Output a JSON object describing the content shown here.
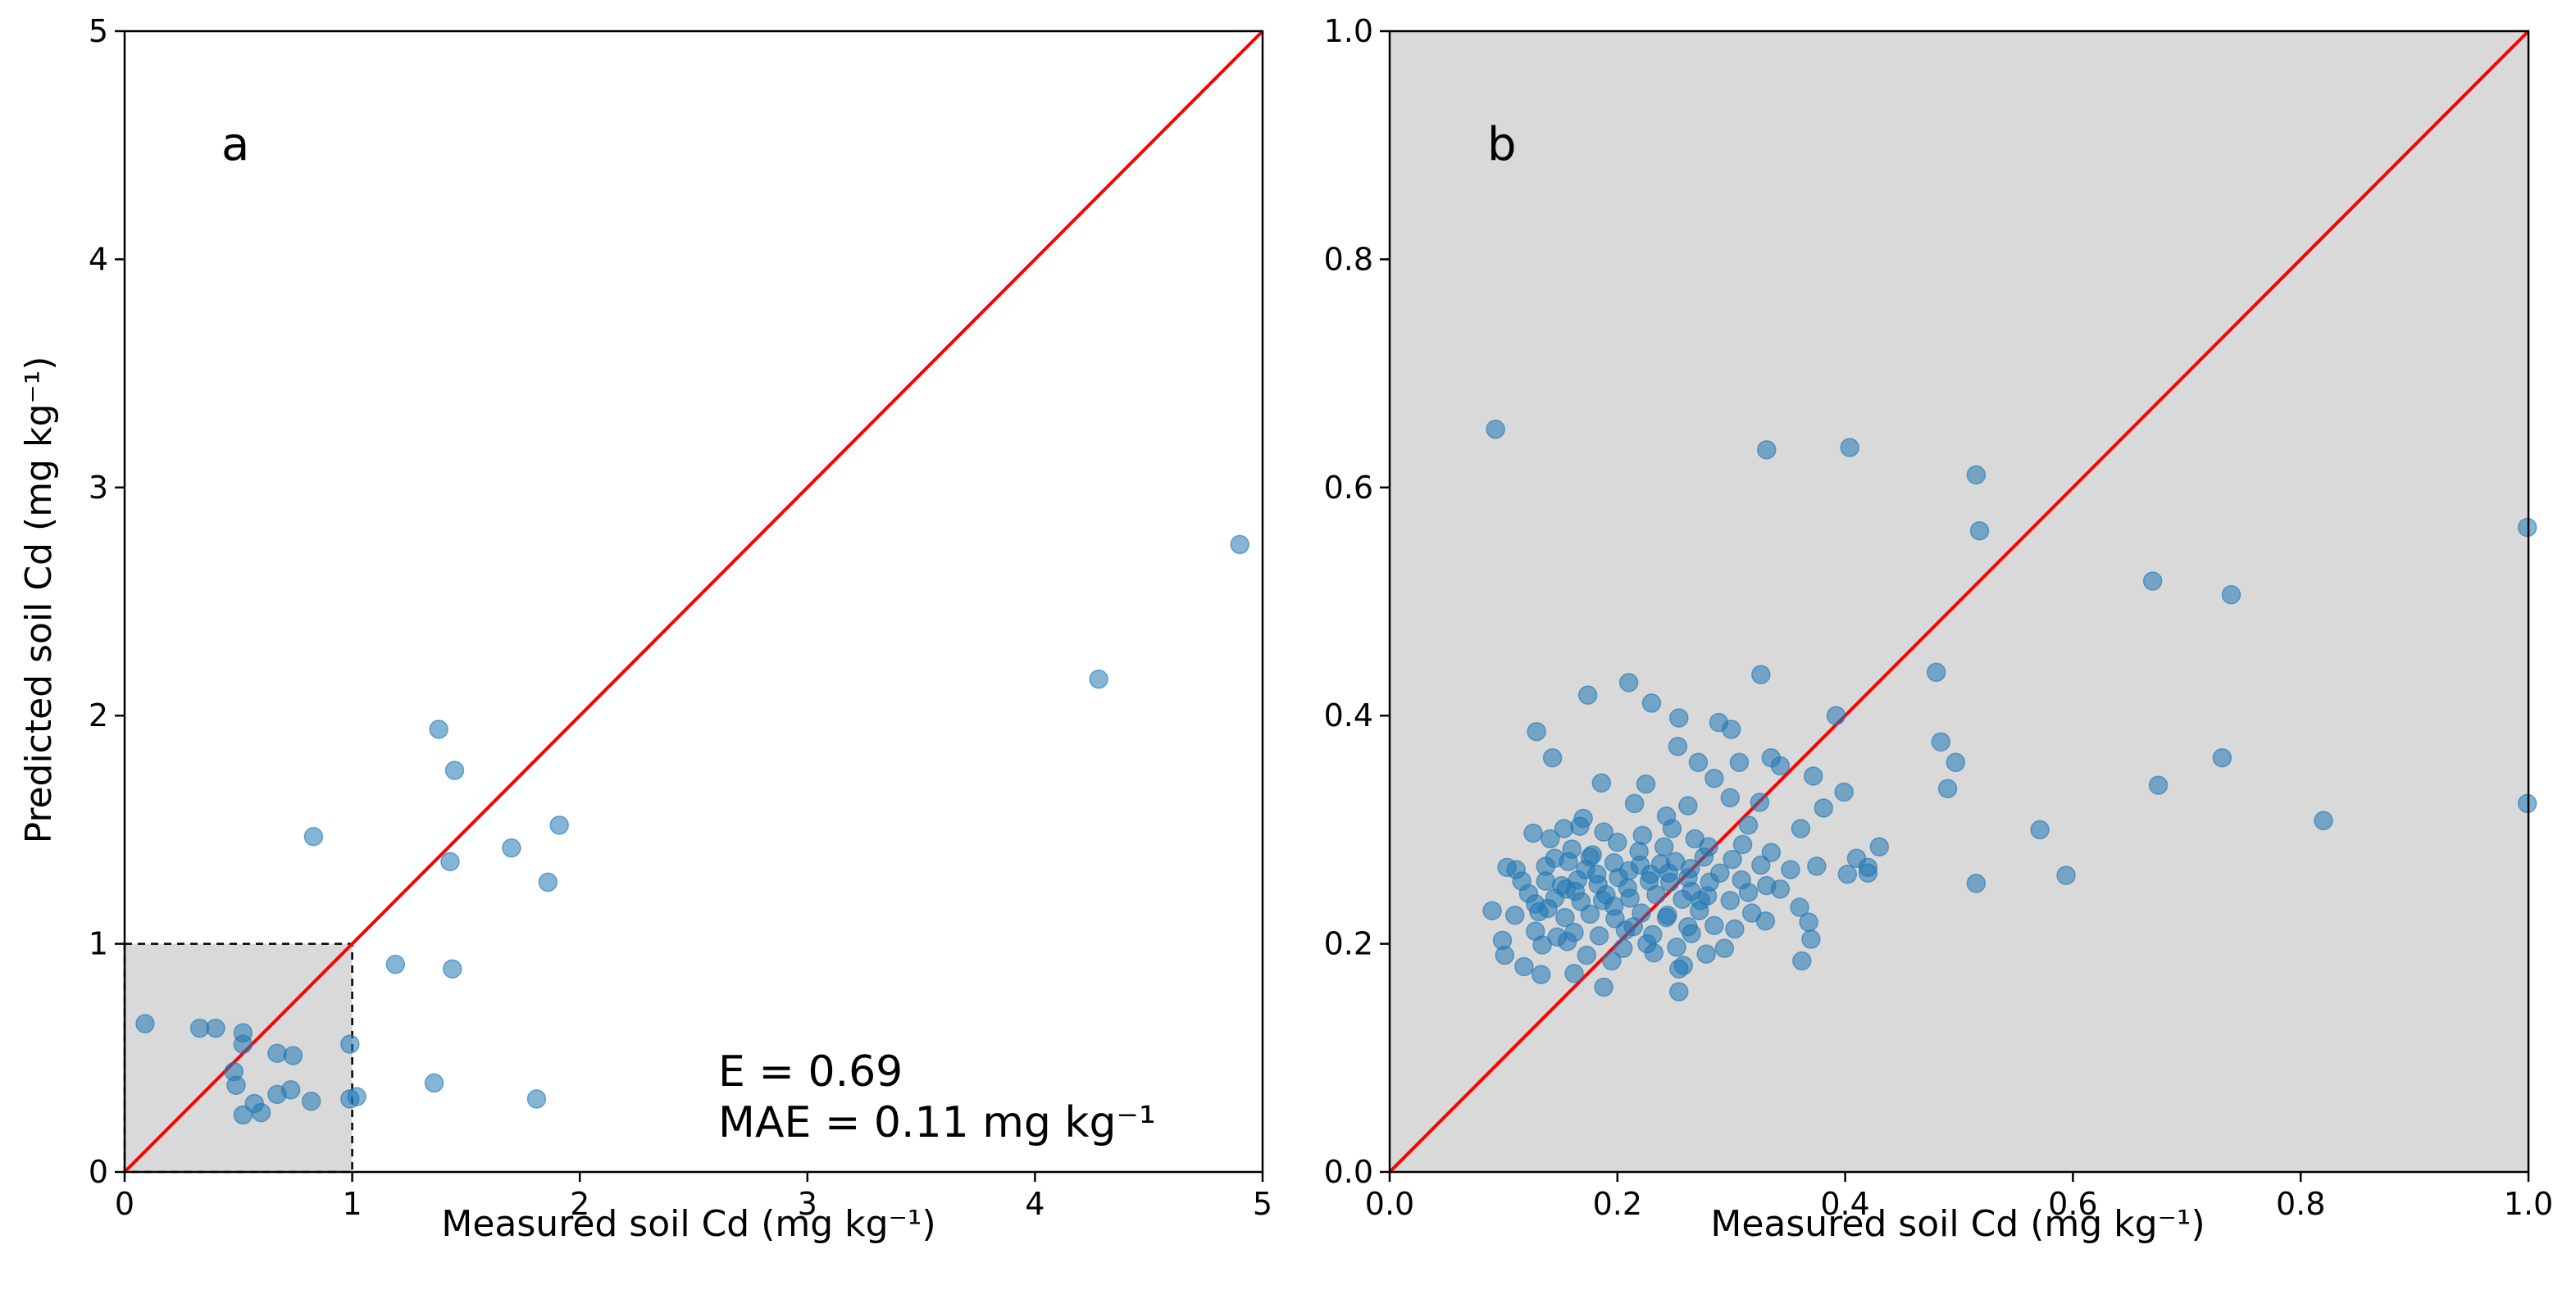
{
  "colors": {
    "point": "#1f77b4",
    "identity_line": "#ff0000",
    "inset_fill": "#d9d9d9",
    "frame": "#000000"
  },
  "chart_data": [
    {
      "type": "scatter",
      "panel_label": "a",
      "xlabel": "Measured soil Cd (mg kg⁻¹)",
      "ylabel": "Predicted soil Cd (mg kg⁻¹)",
      "xlim": [
        0,
        5
      ],
      "ylim": [
        0,
        5
      ],
      "xticks": [
        0,
        1,
        2,
        3,
        4,
        5
      ],
      "yticks": [
        0,
        1,
        2,
        3,
        4,
        5
      ],
      "tick_labels": [
        "0",
        "1",
        "2",
        "3",
        "4",
        "5"
      ],
      "reference_line": "1:1",
      "zoom_region": {
        "x": [
          0,
          1
        ],
        "y": [
          0,
          1
        ]
      },
      "annotations": [
        "E = 0.69",
        "MAE = 0.11 mg kg⁻¹"
      ],
      "points": [
        [
          4.9,
          2.75
        ],
        [
          4.28,
          2.16
        ],
        [
          1.38,
          1.94
        ],
        [
          1.45,
          1.76
        ],
        [
          1.91,
          1.52
        ],
        [
          0.83,
          1.47
        ],
        [
          1.7,
          1.42
        ],
        [
          1.43,
          1.36
        ],
        [
          1.86,
          1.27
        ],
        [
          1.19,
          0.91
        ],
        [
          1.44,
          0.89
        ],
        [
          1.36,
          0.39
        ],
        [
          1.81,
          0.32
        ],
        [
          1.02,
          0.33
        ],
        [
          0.99,
          0.32
        ],
        [
          0.99,
          0.56
        ],
        [
          0.82,
          0.31
        ],
        [
          0.67,
          0.52
        ],
        [
          0.74,
          0.51
        ],
        [
          0.73,
          0.36
        ],
        [
          0.67,
          0.34
        ],
        [
          0.6,
          0.26
        ],
        [
          0.57,
          0.3
        ],
        [
          0.52,
          0.61
        ],
        [
          0.52,
          0.56
        ],
        [
          0.52,
          0.25
        ],
        [
          0.48,
          0.44
        ],
        [
          0.49,
          0.38
        ],
        [
          0.4,
          0.63
        ],
        [
          0.33,
          0.63
        ],
        [
          0.09,
          0.65
        ]
      ]
    },
    {
      "type": "scatter",
      "panel_label": "b",
      "xlabel": "Measured soil Cd (mg kg⁻¹)",
      "xlim": [
        0,
        1
      ],
      "ylim": [
        0,
        1
      ],
      "xticks": [
        0,
        0.2,
        0.4,
        0.6,
        0.8,
        1.0
      ],
      "yticks": [
        0,
        0.2,
        0.4,
        0.6,
        0.8,
        1.0
      ],
      "tick_labels": [
        "0.0",
        "0.2",
        "0.4",
        "0.6",
        "0.8",
        "1.0"
      ],
      "reference_line": "1:1",
      "points": [
        [
          0.093,
          0.651
        ],
        [
          0.331,
          0.633
        ],
        [
          0.404,
          0.635
        ],
        [
          0.515,
          0.611
        ],
        [
          0.518,
          0.562
        ],
        [
          0.999,
          0.565
        ],
        [
          0.67,
          0.518
        ],
        [
          0.739,
          0.506
        ],
        [
          0.326,
          0.436
        ],
        [
          0.48,
          0.438
        ],
        [
          0.21,
          0.429
        ],
        [
          0.174,
          0.418
        ],
        [
          0.23,
          0.411
        ],
        [
          0.392,
          0.4
        ],
        [
          0.254,
          0.398
        ],
        [
          0.289,
          0.394
        ],
        [
          0.3,
          0.388
        ],
        [
          0.129,
          0.386
        ],
        [
          0.484,
          0.377
        ],
        [
          0.253,
          0.373
        ],
        [
          0.143,
          0.363
        ],
        [
          0.307,
          0.359
        ],
        [
          0.335,
          0.363
        ],
        [
          0.343,
          0.356
        ],
        [
          0.497,
          0.359
        ],
        [
          0.731,
          0.363
        ],
        [
          0.186,
          0.341
        ],
        [
          0.225,
          0.34
        ],
        [
          0.271,
          0.359
        ],
        [
          0.372,
          0.347
        ],
        [
          0.675,
          0.339
        ],
        [
          0.49,
          0.336
        ],
        [
          0.399,
          0.333
        ],
        [
          0.381,
          0.319
        ],
        [
          0.285,
          0.345
        ],
        [
          0.299,
          0.328
        ],
        [
          0.325,
          0.324
        ],
        [
          0.82,
          0.308
        ],
        [
          0.571,
          0.3
        ],
        [
          0.999,
          0.323
        ],
        [
          0.215,
          0.323
        ],
        [
          0.262,
          0.321
        ],
        [
          0.17,
          0.31
        ],
        [
          0.167,
          0.303
        ],
        [
          0.153,
          0.301
        ],
        [
          0.126,
          0.297
        ],
        [
          0.141,
          0.292
        ],
        [
          0.188,
          0.298
        ],
        [
          0.243,
          0.312
        ],
        [
          0.315,
          0.304
        ],
        [
          0.361,
          0.301
        ],
        [
          0.43,
          0.285
        ],
        [
          0.41,
          0.275
        ],
        [
          0.42,
          0.267
        ],
        [
          0.402,
          0.261
        ],
        [
          0.42,
          0.262
        ],
        [
          0.515,
          0.253
        ],
        [
          0.594,
          0.26
        ],
        [
          0.103,
          0.267
        ],
        [
          0.111,
          0.265
        ],
        [
          0.137,
          0.268
        ],
        [
          0.157,
          0.272
        ],
        [
          0.176,
          0.276
        ],
        [
          0.197,
          0.271
        ],
        [
          0.22,
          0.269
        ],
        [
          0.251,
          0.272
        ],
        [
          0.276,
          0.276
        ],
        [
          0.301,
          0.274
        ],
        [
          0.326,
          0.269
        ],
        [
          0.352,
          0.265
        ],
        [
          0.375,
          0.268
        ],
        [
          0.137,
          0.255
        ],
        [
          0.151,
          0.251
        ],
        [
          0.165,
          0.256
        ],
        [
          0.182,
          0.261
        ],
        [
          0.201,
          0.258
        ],
        [
          0.228,
          0.255
        ],
        [
          0.245,
          0.262
        ],
        [
          0.262,
          0.258
        ],
        [
          0.281,
          0.254
        ],
        [
          0.309,
          0.256
        ],
        [
          0.331,
          0.251
        ],
        [
          0.122,
          0.244
        ],
        [
          0.145,
          0.24
        ],
        [
          0.168,
          0.237
        ],
        [
          0.19,
          0.243
        ],
        [
          0.211,
          0.24
        ],
        [
          0.234,
          0.243
        ],
        [
          0.257,
          0.239
        ],
        [
          0.279,
          0.242
        ],
        [
          0.299,
          0.238
        ],
        [
          0.36,
          0.232
        ],
        [
          0.09,
          0.229
        ],
        [
          0.11,
          0.225
        ],
        [
          0.131,
          0.228
        ],
        [
          0.154,
          0.223
        ],
        [
          0.176,
          0.226
        ],
        [
          0.198,
          0.222
        ],
        [
          0.221,
          0.227
        ],
        [
          0.243,
          0.223
        ],
        [
          0.272,
          0.229
        ],
        [
          0.318,
          0.227
        ],
        [
          0.368,
          0.219
        ],
        [
          0.128,
          0.211
        ],
        [
          0.147,
          0.206
        ],
        [
          0.162,
          0.21
        ],
        [
          0.184,
          0.207
        ],
        [
          0.207,
          0.212
        ],
        [
          0.231,
          0.208
        ],
        [
          0.265,
          0.209
        ],
        [
          0.285,
          0.216
        ],
        [
          0.099,
          0.203
        ],
        [
          0.134,
          0.199
        ],
        [
          0.156,
          0.202
        ],
        [
          0.205,
          0.196
        ],
        [
          0.226,
          0.2
        ],
        [
          0.252,
          0.197
        ],
        [
          0.278,
          0.191
        ],
        [
          0.294,
          0.196
        ],
        [
          0.37,
          0.204
        ],
        [
          0.101,
          0.19
        ],
        [
          0.118,
          0.18
        ],
        [
          0.173,
          0.19
        ],
        [
          0.195,
          0.185
        ],
        [
          0.232,
          0.192
        ],
        [
          0.258,
          0.181
        ],
        [
          0.362,
          0.185
        ],
        [
          0.133,
          0.173
        ],
        [
          0.162,
          0.174
        ],
        [
          0.254,
          0.178
        ],
        [
          0.188,
          0.162
        ],
        [
          0.254,
          0.158
        ],
        [
          0.155,
          0.248
        ],
        [
          0.172,
          0.265
        ],
        [
          0.183,
          0.252
        ],
        [
          0.21,
          0.264
        ],
        [
          0.238,
          0.27
        ],
        [
          0.264,
          0.266
        ],
        [
          0.29,
          0.262
        ],
        [
          0.16,
          0.283
        ],
        [
          0.2,
          0.289
        ],
        [
          0.222,
          0.295
        ],
        [
          0.248,
          0.301
        ],
        [
          0.268,
          0.292
        ],
        [
          0.28,
          0.285
        ],
        [
          0.139,
          0.231
        ],
        [
          0.163,
          0.246
        ],
        [
          0.209,
          0.249
        ],
        [
          0.246,
          0.254
        ],
        [
          0.315,
          0.245
        ],
        [
          0.343,
          0.248
        ],
        [
          0.116,
          0.255
        ],
        [
          0.128,
          0.235
        ],
        [
          0.219,
          0.281
        ],
        [
          0.229,
          0.261
        ],
        [
          0.197,
          0.233
        ],
        [
          0.265,
          0.246
        ],
        [
          0.273,
          0.238
        ],
        [
          0.31,
          0.287
        ],
        [
          0.335,
          0.28
        ],
        [
          0.145,
          0.275
        ],
        [
          0.178,
          0.278
        ],
        [
          0.241,
          0.285
        ],
        [
          0.187,
          0.238
        ],
        [
          0.214,
          0.215
        ],
        [
          0.244,
          0.225
        ],
        [
          0.262,
          0.215
        ],
        [
          0.303,
          0.213
        ],
        [
          0.33,
          0.22
        ]
      ]
    }
  ]
}
